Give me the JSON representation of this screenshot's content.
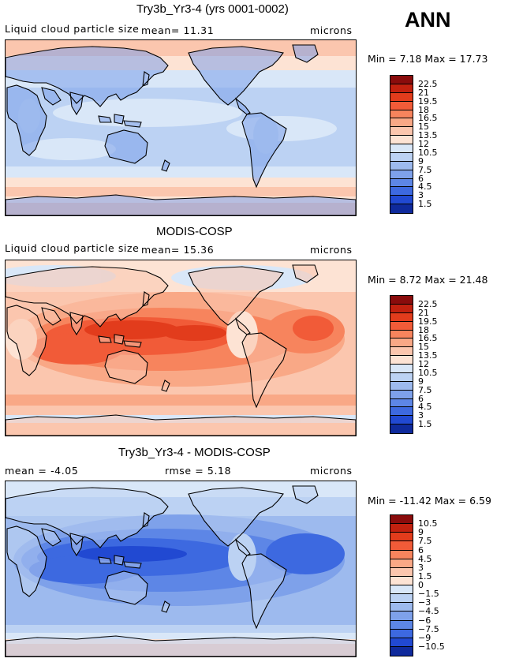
{
  "season": "ANN",
  "panels": [
    {
      "id": "model",
      "title": "Try3b_Yr3-4 (yrs 0001-0002)",
      "left_text": "Liquid cloud particle size",
      "mid_text": "mean=   11.31",
      "units": "microns",
      "min_max": "Min =    7.18  Max =   17.73",
      "map_style": "model",
      "colorbar": {
        "labels": [
          "22.5",
          "21",
          "19.5",
          "18",
          "16.5",
          "15",
          "13.5",
          "12",
          "10.5",
          "9",
          "7.5",
          "6",
          "4.5",
          "3",
          "1.5"
        ],
        "colors": [
          "#8a0c0c",
          "#c2210f",
          "#e23c1c",
          "#f15b38",
          "#f7845d",
          "#f9a886",
          "#fbc6ae",
          "#fde3d4",
          "#d9e7f8",
          "#bcd2f3",
          "#9dbaee",
          "#7ea1ea",
          "#5d86e6",
          "#3d69e0",
          "#2149d2",
          "#0f2a9c"
        ]
      }
    },
    {
      "id": "obs",
      "title": "MODIS-COSP",
      "left_text": "Liquid cloud particle size",
      "mid_text": "mean=   15.36",
      "units": "microns",
      "min_max": "Min =    8.72  Max =   21.48",
      "map_style": "obs",
      "colorbar": {
        "labels": [
          "22.5",
          "21",
          "19.5",
          "18",
          "16.5",
          "15",
          "13.5",
          "12",
          "10.5",
          "9",
          "7.5",
          "6",
          "4.5",
          "3",
          "1.5"
        ],
        "colors": [
          "#8a0c0c",
          "#c2210f",
          "#e23c1c",
          "#f15b38",
          "#f7845d",
          "#f9a886",
          "#fbc6ae",
          "#fde3d4",
          "#d9e7f8",
          "#bcd2f3",
          "#9dbaee",
          "#7ea1ea",
          "#5d86e6",
          "#3d69e0",
          "#2149d2",
          "#0f2a9c"
        ]
      }
    },
    {
      "id": "diff",
      "title": "Try3b_Yr3-4 - MODIS-COSP",
      "left_text": "mean =   -4.05",
      "mid_text": "rmse =    5.18",
      "units": "microns",
      "min_max": "Min = -11.42  Max =    6.59",
      "map_style": "diff",
      "colorbar": {
        "labels": [
          "10.5",
          "9",
          "7.5",
          "6",
          "4.5",
          "3",
          "1.5",
          "0",
          "−1.5",
          "−3",
          "−4.5",
          "−6",
          "−7.5",
          "−9",
          "−10.5"
        ],
        "colors": [
          "#8a0c0c",
          "#c2210f",
          "#e23c1c",
          "#f15b38",
          "#f7845d",
          "#f9a886",
          "#fbc6ae",
          "#fde3d4",
          "#d9e7f8",
          "#bcd2f3",
          "#9dbaee",
          "#7ea1ea",
          "#5d86e6",
          "#3d69e0",
          "#2149d2",
          "#0f2a9c"
        ]
      }
    }
  ]
}
